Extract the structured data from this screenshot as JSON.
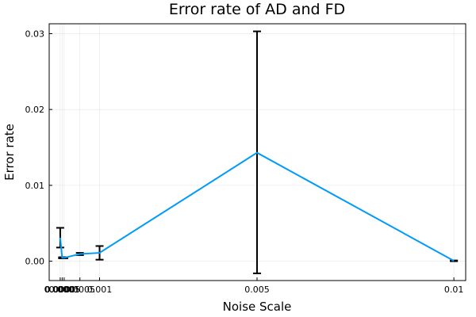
{
  "chart_data": {
    "type": "line",
    "title": "Error rate of AD and FD",
    "xlabel": "Noise Scale",
    "ylabel": "Error rate",
    "xlim": [
      -0.00028,
      0.0103
    ],
    "ylim": [
      -0.00255,
      0.0313
    ],
    "grid": true,
    "legend": "none",
    "xticks": [
      {
        "value": 0.0,
        "label": "0.0000"
      },
      {
        "value": 5e-05,
        "label": "0.00005"
      },
      {
        "value": 0.0001,
        "label": "0.0001"
      },
      {
        "value": 0.0005,
        "label": "0.0005"
      },
      {
        "value": 0.001,
        "label": "0.001"
      },
      {
        "value": 0.005,
        "label": "0.005"
      },
      {
        "value": 0.01,
        "label": "0.01"
      }
    ],
    "yticks": [
      {
        "value": 0.0,
        "label": "0.00"
      },
      {
        "value": 0.01,
        "label": "0.01"
      },
      {
        "value": 0.02,
        "label": "0.02"
      },
      {
        "value": 0.03,
        "label": "0.03"
      }
    ],
    "series": [
      {
        "color": "#009af9",
        "x": [
          0.0,
          5e-05,
          0.0001,
          0.0005,
          0.001,
          0.005,
          0.01
        ],
        "y": [
          0.0031,
          0.00045,
          0.00045,
          0.00095,
          0.0011,
          0.0143,
          5e-05
        ],
        "err_low": [
          0.0018,
          0.00038,
          0.00038,
          0.0008,
          0.0002,
          -0.0016,
          0.0
        ],
        "err_high": [
          0.0044,
          0.00052,
          0.00052,
          0.0011,
          0.002,
          0.0303,
          0.0001
        ]
      }
    ]
  }
}
